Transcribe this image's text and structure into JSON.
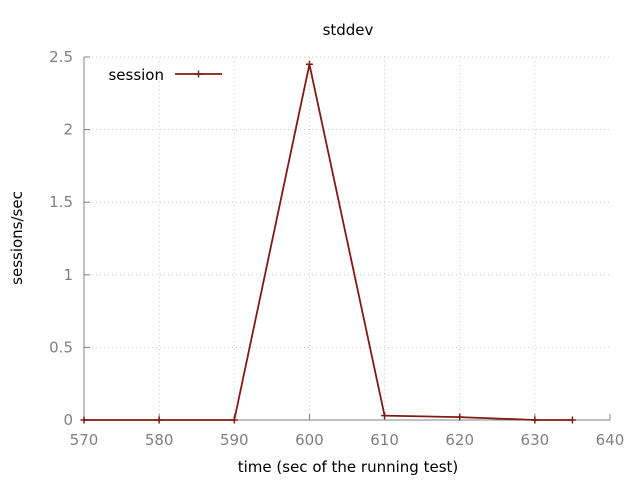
{
  "chart_data": {
    "type": "line",
    "title": "stddev",
    "xlabel": "time (sec of the running test)",
    "ylabel": "sessions/sec",
    "xlim": [
      570,
      640
    ],
    "ylim": [
      0,
      2.5
    ],
    "xticks": [
      570,
      580,
      590,
      600,
      610,
      620,
      630,
      640
    ],
    "yticks": [
      0,
      0.5,
      1,
      1.5,
      2,
      2.5
    ],
    "ytick_labels": [
      "0",
      "0.5",
      "1",
      "1.5",
      "2",
      "2.5"
    ],
    "grid": true,
    "legend": "top-left",
    "series": [
      {
        "name": "session",
        "color": "#7f1a14",
        "x": [
          570,
          580,
          590,
          600,
          610,
          620,
          630,
          635
        ],
        "y": [
          0,
          0,
          0,
          2.45,
          0.03,
          0.02,
          0,
          0
        ]
      }
    ]
  }
}
